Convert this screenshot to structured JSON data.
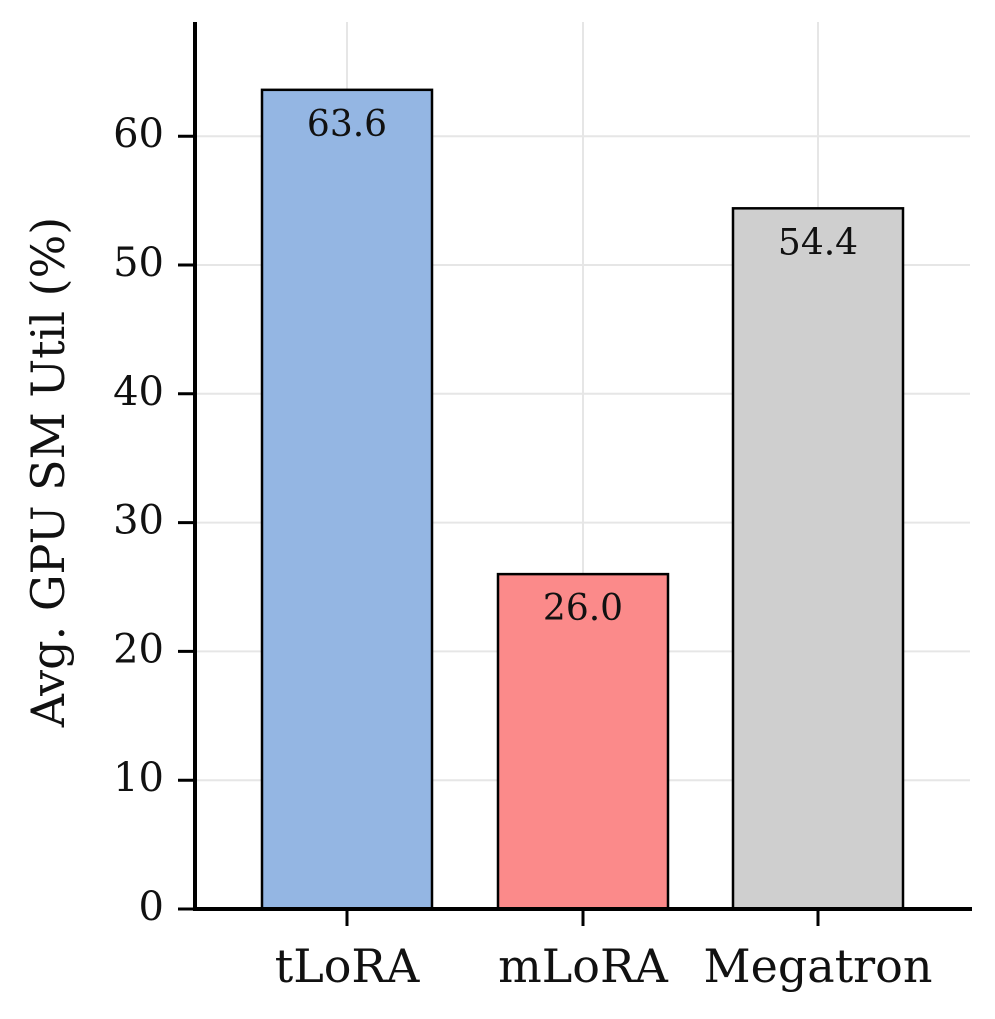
{
  "chart_data": {
    "type": "bar",
    "title": "",
    "xlabel": "",
    "ylabel": "Avg. GPU SM Util (%)",
    "ylim": [
      0,
      69
    ],
    "yticks": [
      0,
      10,
      20,
      30,
      40,
      50,
      60
    ],
    "grid": true,
    "categories": [
      "tLoRA",
      "mLoRA",
      "Megatron"
    ],
    "values": [
      63.6,
      26.0,
      54.4
    ],
    "value_labels": [
      "63.6",
      "26.0",
      "54.4"
    ],
    "colors": [
      "#94b6e3",
      "#fb8a8a",
      "#cfcfcf"
    ],
    "edge_color": "#000000"
  }
}
